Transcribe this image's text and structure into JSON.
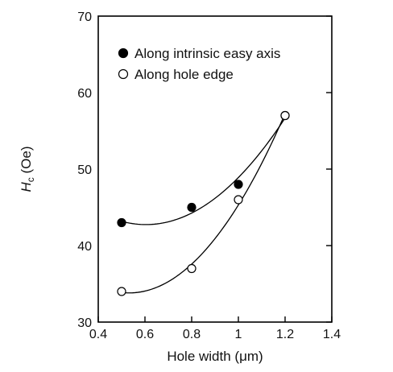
{
  "chart_data": {
    "type": "scatter",
    "xlabel": "Hole width (μm)",
    "ylabel_symbol": "H",
    "ylabel_subscript": "c",
    "ylabel_unit": " (Oe)",
    "xlim": [
      0.4,
      1.4
    ],
    "ylim": [
      30,
      70
    ],
    "xticks": [
      "0.4",
      "0.6",
      "0.8",
      "1",
      "1.2",
      "1.4"
    ],
    "yticks": [
      "30",
      "40",
      "50",
      "60",
      "70"
    ],
    "grid": false,
    "legend_position": "top-left",
    "series": [
      {
        "name": "Along intrinsic easy axis",
        "marker": "filled-circle",
        "x": [
          0.5,
          0.8,
          1.0,
          1.2
        ],
        "y": [
          43,
          45,
          48,
          57
        ]
      },
      {
        "name": "Along hole edge",
        "marker": "open-circle",
        "x": [
          0.5,
          0.8,
          1.0,
          1.2
        ],
        "y": [
          34,
          37,
          46,
          57
        ]
      }
    ]
  }
}
